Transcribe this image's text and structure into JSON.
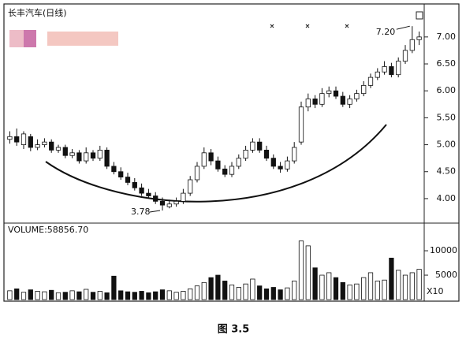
{
  "chart_data": {
    "type": "candlestick",
    "title": "长丰汽车(日线)",
    "volume_label": "VOLUME:58856.70",
    "volume_unit": "X10",
    "caption": "图 3.5",
    "annotations": [
      {
        "text": "3.78",
        "index": 22
      },
      {
        "text": "7.20",
        "index": 58
      }
    ],
    "up_color": "#ffffff",
    "down_color": "#111111",
    "open": [
      5.1,
      5.15,
      5.0,
      5.15,
      4.95,
      5.0,
      5.05,
      4.9,
      4.95,
      4.8,
      4.85,
      4.7,
      4.85,
      4.75,
      4.9,
      4.6,
      4.5,
      4.4,
      4.3,
      4.2,
      4.1,
      4.05,
      3.95,
      3.85,
      3.9,
      3.95,
      4.1,
      4.35,
      4.6,
      4.85,
      4.7,
      4.55,
      4.45,
      4.6,
      4.75,
      4.9,
      5.05,
      4.9,
      4.75,
      4.6,
      4.55,
      4.7,
      5.05,
      5.7,
      5.85,
      5.75,
      5.95,
      6.0,
      5.9,
      5.75,
      5.85,
      5.95,
      6.1,
      6.25,
      6.35,
      6.45,
      6.3,
      6.55,
      6.75,
      6.95
    ],
    "high": [
      5.25,
      5.3,
      5.25,
      5.2,
      5.1,
      5.12,
      5.1,
      5.0,
      5.0,
      4.92,
      4.9,
      4.95,
      4.9,
      4.98,
      4.95,
      4.68,
      4.58,
      4.48,
      4.38,
      4.28,
      4.18,
      4.12,
      4.02,
      3.98,
      4.02,
      4.18,
      4.42,
      4.68,
      4.95,
      4.92,
      4.78,
      4.62,
      4.68,
      4.82,
      4.98,
      5.12,
      5.12,
      4.98,
      4.82,
      4.68,
      4.78,
      5.05,
      5.8,
      5.95,
      5.92,
      6.05,
      6.08,
      6.08,
      5.98,
      5.92,
      6.02,
      6.18,
      6.32,
      6.42,
      6.55,
      6.52,
      6.62,
      6.85,
      7.2,
      7.1
    ],
    "low": [
      5.02,
      4.98,
      4.92,
      4.88,
      4.9,
      4.95,
      4.85,
      4.85,
      4.75,
      4.75,
      4.65,
      4.65,
      4.7,
      4.7,
      4.55,
      4.45,
      4.35,
      4.25,
      4.15,
      4.05,
      4.0,
      3.9,
      3.78,
      3.82,
      3.85,
      3.9,
      4.05,
      4.3,
      4.55,
      4.62,
      4.5,
      4.4,
      4.4,
      4.55,
      4.7,
      4.85,
      4.85,
      4.7,
      4.55,
      4.48,
      4.5,
      4.65,
      5.0,
      5.62,
      5.68,
      5.7,
      5.88,
      5.85,
      5.7,
      5.68,
      5.8,
      5.9,
      6.05,
      6.2,
      6.3,
      6.25,
      6.25,
      6.5,
      6.7,
      6.85
    ],
    "close": [
      5.15,
      5.05,
      5.2,
      4.95,
      5.0,
      5.05,
      4.9,
      4.95,
      4.8,
      4.85,
      4.7,
      4.85,
      4.75,
      4.9,
      4.6,
      4.5,
      4.4,
      4.3,
      4.2,
      4.1,
      4.05,
      3.95,
      3.88,
      3.9,
      3.95,
      4.1,
      4.35,
      4.6,
      4.85,
      4.7,
      4.55,
      4.45,
      4.6,
      4.75,
      4.9,
      5.05,
      4.9,
      4.75,
      4.6,
      4.55,
      4.7,
      4.95,
      5.7,
      5.85,
      5.75,
      5.95,
      6.0,
      5.9,
      5.75,
      5.85,
      5.95,
      6.1,
      6.25,
      6.35,
      6.45,
      6.3,
      6.55,
      6.75,
      6.95,
      7.0
    ],
    "volume": [
      1800,
      2200,
      1500,
      2000,
      1700,
      1600,
      1900,
      1400,
      1500,
      1800,
      1600,
      2100,
      1500,
      1700,
      1400,
      4800,
      1800,
      1600,
      1500,
      1700,
      1400,
      1600,
      2000,
      1800,
      1500,
      1700,
      2200,
      2800,
      3500,
      4500,
      5000,
      3800,
      3000,
      2500,
      3200,
      4200,
      2800,
      2200,
      2500,
      2000,
      2400,
      3800,
      12000,
      11000,
      6500,
      5000,
      5500,
      4500,
      3500,
      3000,
      3200,
      4500,
      5500,
      3800,
      4000,
      8500,
      6000,
      5000,
      5500,
      6200
    ],
    "ylim": [
      3.56,
      7.51
    ],
    "yticks": [
      {
        "value": 4,
        "label": "4.00"
      },
      {
        "value": 4.5,
        "label": "4.50"
      },
      {
        "value": 5,
        "label": "5.00"
      },
      {
        "value": 5.5,
        "label": "5.50"
      },
      {
        "value": 6,
        "label": "6.00"
      },
      {
        "value": 6.5,
        "label": "6.50"
      },
      {
        "value": 7,
        "label": "7.00"
      }
    ],
    "y2lim": [
      0,
      15500
    ],
    "y2ticks": [
      5000,
      10000
    ]
  }
}
